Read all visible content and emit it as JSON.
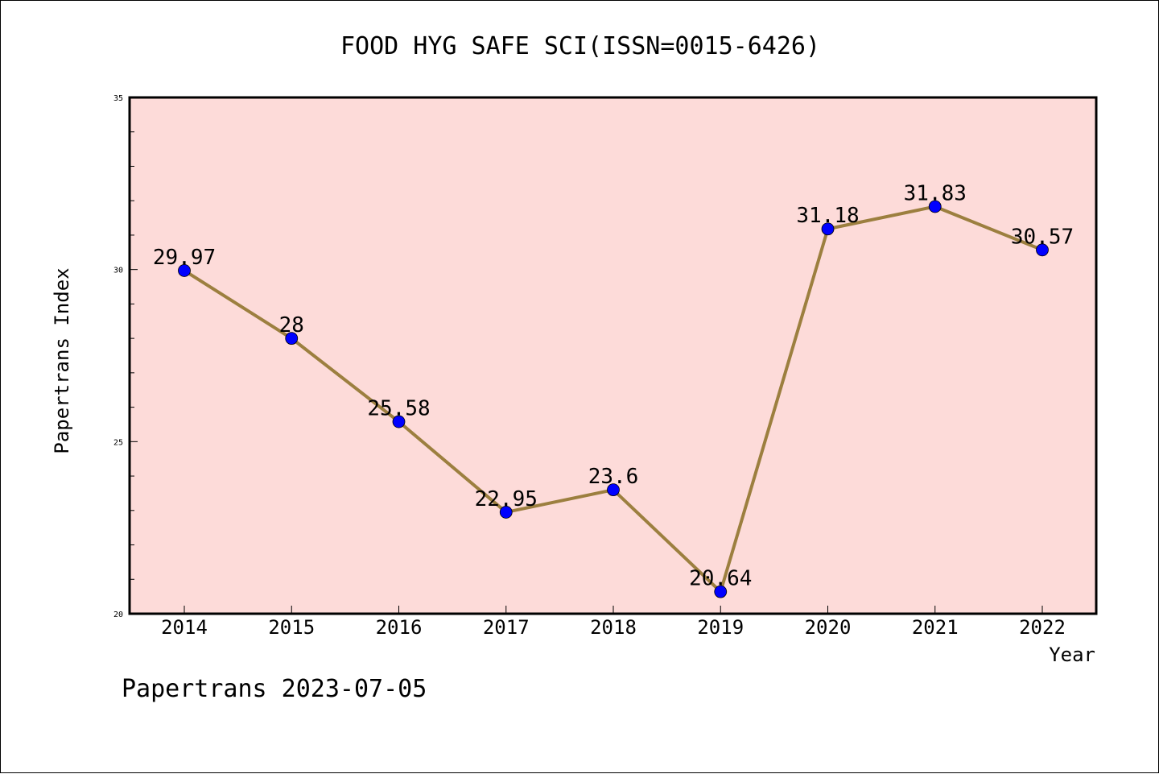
{
  "chart_data": {
    "type": "line",
    "title": "FOOD HYG SAFE SCI(ISSN=0015-6426)",
    "xlabel": "Year",
    "ylabel": "Papertrans Index",
    "categories": [
      "2014",
      "2015",
      "2016",
      "2017",
      "2018",
      "2019",
      "2020",
      "2021",
      "2022"
    ],
    "series": [
      {
        "name": "Papertrans Index",
        "values": [
          29.97,
          28,
          25.58,
          22.95,
          23.6,
          20.64,
          31.18,
          31.83,
          30.57
        ],
        "labels": [
          "29.97",
          "28",
          "25.58",
          "22.95",
          "23.6",
          "20.64",
          "31.18",
          "31.83",
          "30.57"
        ]
      }
    ],
    "ylim": [
      20,
      35
    ],
    "yticks": [
      20,
      25,
      30,
      35
    ],
    "yticks_minor_step": 1,
    "grid": false,
    "legend": "none",
    "footer": "Papertrans 2023-07-05",
    "colors": {
      "plot_background": "#fddbd9",
      "line": "#9c7f3f",
      "marker": "#0000ff",
      "axis": "#000000",
      "text": "#000000"
    }
  }
}
